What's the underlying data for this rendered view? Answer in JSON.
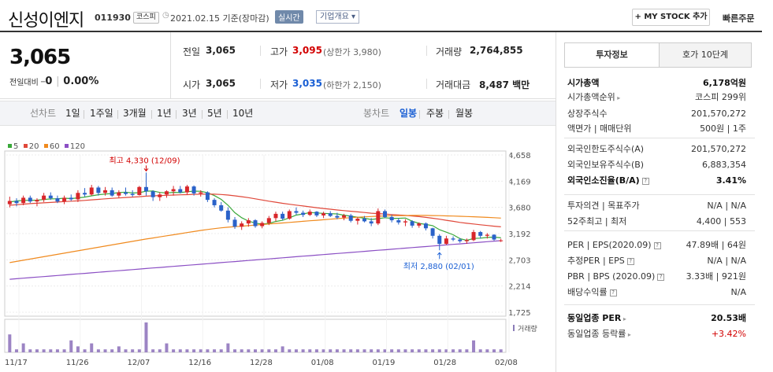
{
  "header": {
    "title": "신성이엔지",
    "code": "011930",
    "market": "코스피",
    "date": "2021.02.15 기준(장마감)",
    "realtime": "실시간",
    "company": "기업개요 ▾",
    "mystock": "+ MY STOCK 추가",
    "quick_order": "빠른주문"
  },
  "price": {
    "current": "3,065",
    "change_label": "전일대비",
    "change_symbol": "━",
    "change_value": "0",
    "change_rate": "0.00%"
  },
  "quote": {
    "prev_label": "전일",
    "prev": "3,065",
    "high_label": "고가",
    "high": "3,095",
    "upper_limit": "(상한가 3,980)",
    "volume_label": "거래량",
    "volume": "2,764,855",
    "open_label": "시가",
    "open": "3,065",
    "low_label": "저가",
    "low": "3,035",
    "lower_limit": "(하한가 2,150)",
    "amount_label": "거래대금",
    "amount": "8,487 백만"
  },
  "toolbar": {
    "line_label": "선차트",
    "periods": [
      "1일",
      "1주일",
      "3개월",
      "1년",
      "3년",
      "5년",
      "10년"
    ],
    "candle_label": "봉차트",
    "candles": [
      "일봉",
      "주봉",
      "월봉"
    ],
    "selected": "일봉"
  },
  "legend": [
    {
      "label": "5",
      "color": "#3aa93a"
    },
    {
      "label": "20",
      "color": "#e0483a"
    },
    {
      "label": "60",
      "color": "#f08a1e"
    },
    {
      "label": "120",
      "color": "#8b4fc4"
    }
  ],
  "chart_data": {
    "type": "candlestick",
    "y_ticks": [
      "4,658",
      "4,169",
      "3,680",
      "3,192",
      "2,703",
      "2,214",
      "1,725"
    ],
    "x_ticks": [
      "11/17",
      "11/26",
      "12/07",
      "12/16",
      "12/28",
      "01/08",
      "01/19",
      "01/28",
      "02/08"
    ],
    "high_annotation": "최고 4,330 (12/09)",
    "low_annotation": "최저 2,880 (02/01)",
    "volume_label": "거래량",
    "ylim": [
      1725,
      4658
    ],
    "ohlc": [
      [
        3740,
        3880,
        3680,
        3800
      ],
      [
        3800,
        3850,
        3700,
        3760
      ],
      [
        3760,
        3900,
        3720,
        3860
      ],
      [
        3860,
        3900,
        3760,
        3790
      ],
      [
        3790,
        3850,
        3700,
        3820
      ],
      [
        3820,
        3950,
        3780,
        3900
      ],
      [
        3900,
        3960,
        3820,
        3850
      ],
      [
        3850,
        3900,
        3760,
        3790
      ],
      [
        3790,
        3900,
        3740,
        3860
      ],
      [
        3860,
        3920,
        3800,
        3830
      ],
      [
        3830,
        4000,
        3780,
        3950
      ],
      [
        3950,
        4040,
        3880,
        3920
      ],
      [
        3920,
        4100,
        3900,
        4050
      ],
      [
        4050,
        4080,
        3900,
        3950
      ],
      [
        3950,
        4060,
        3900,
        4000
      ],
      [
        4000,
        4050,
        3880,
        3900
      ],
      [
        3900,
        4000,
        3860,
        3960
      ],
      [
        3960,
        4050,
        3900,
        3930
      ],
      [
        3930,
        4000,
        3880,
        3910
      ],
      [
        3910,
        4080,
        3900,
        4060
      ],
      [
        4060,
        4330,
        3900,
        3980
      ],
      [
        3980,
        4000,
        3800,
        3870
      ],
      [
        3870,
        3960,
        3800,
        3920
      ],
      [
        3920,
        4000,
        3860,
        3980
      ],
      [
        3980,
        4080,
        3900,
        4020
      ],
      [
        4020,
        4080,
        3940,
        3960
      ],
      [
        3960,
        4100,
        3920,
        4070
      ],
      [
        4070,
        4090,
        3900,
        3940
      ],
      [
        3940,
        4000,
        3880,
        3960
      ],
      [
        3960,
        3980,
        3780,
        3820
      ],
      [
        3820,
        3850,
        3680,
        3720
      ],
      [
        3720,
        3780,
        3600,
        3620
      ],
      [
        3620,
        3680,
        3400,
        3450
      ],
      [
        3450,
        3500,
        3280,
        3320
      ],
      [
        3320,
        3420,
        3260,
        3380
      ],
      [
        3380,
        3480,
        3320,
        3440
      ],
      [
        3440,
        3460,
        3300,
        3330
      ],
      [
        3330,
        3420,
        3290,
        3390
      ],
      [
        3390,
        3520,
        3350,
        3480
      ],
      [
        3480,
        3600,
        3420,
        3560
      ],
      [
        3560,
        3600,
        3440,
        3470
      ],
      [
        3470,
        3640,
        3450,
        3610
      ],
      [
        3610,
        3680,
        3540,
        3580
      ],
      [
        3580,
        3620,
        3500,
        3540
      ],
      [
        3540,
        3640,
        3520,
        3600
      ],
      [
        3600,
        3610,
        3500,
        3530
      ],
      [
        3530,
        3600,
        3480,
        3570
      ],
      [
        3570,
        3610,
        3500,
        3520
      ],
      [
        3520,
        3580,
        3460,
        3490
      ],
      [
        3490,
        3560,
        3440,
        3530
      ],
      [
        3530,
        3560,
        3400,
        3430
      ],
      [
        3430,
        3500,
        3360,
        3470
      ],
      [
        3470,
        3520,
        3400,
        3420
      ],
      [
        3420,
        3480,
        3330,
        3380
      ],
      [
        3380,
        3660,
        3350,
        3610
      ],
      [
        3610,
        3640,
        3480,
        3500
      ],
      [
        3500,
        3540,
        3400,
        3440
      ],
      [
        3440,
        3480,
        3360,
        3400
      ],
      [
        3400,
        3460,
        3330,
        3420
      ],
      [
        3420,
        3440,
        3300,
        3340
      ],
      [
        3340,
        3400,
        3300,
        3380
      ],
      [
        3380,
        3400,
        3250,
        3290
      ],
      [
        3290,
        3300,
        3100,
        3150
      ],
      [
        3150,
        3180,
        2880,
        3000
      ],
      [
        3000,
        3150,
        2980,
        3100
      ],
      [
        3100,
        3140,
        3050,
        3080
      ],
      [
        3080,
        3110,
        3020,
        3050
      ],
      [
        3050,
        3100,
        3000,
        3070
      ],
      [
        3070,
        3260,
        3050,
        3220
      ],
      [
        3220,
        3240,
        3100,
        3150
      ],
      [
        3150,
        3200,
        3100,
        3170
      ],
      [
        3170,
        3180,
        3060,
        3080
      ],
      [
        3065,
        3095,
        3035,
        3065
      ]
    ],
    "ma": {
      "5": [
        3780,
        3800,
        3810,
        3812,
        3815,
        3826,
        3838,
        3841,
        3852,
        3844,
        3858,
        3872,
        3896,
        3916,
        3928,
        3939,
        3955,
        3964,
        3948,
        3954,
        3982,
        3986,
        3958,
        3950,
        3960,
        3956,
        3972,
        3984,
        3980,
        3952,
        3900,
        3830,
        3720,
        3582,
        3488,
        3424,
        3386,
        3368,
        3382,
        3418,
        3440,
        3486,
        3536,
        3556,
        3584,
        3576,
        3568,
        3562,
        3558,
        3535,
        3516,
        3496,
        3478,
        3454,
        3470,
        3488,
        3476,
        3476,
        3482,
        3422,
        3382,
        3362,
        3340,
        3264,
        3218,
        3170,
        3098,
        3066,
        3100,
        3106,
        3120,
        3126,
        3112
      ],
      "20": [
        3720,
        3730,
        3740,
        3750,
        3758,
        3765,
        3772,
        3780,
        3788,
        3795,
        3802,
        3810,
        3820,
        3830,
        3840,
        3848,
        3856,
        3864,
        3872,
        3880,
        3890,
        3896,
        3900,
        3905,
        3910,
        3914,
        3918,
        3922,
        3926,
        3928,
        3926,
        3920,
        3910,
        3896,
        3880,
        3862,
        3840,
        3818,
        3796,
        3776,
        3756,
        3738,
        3722,
        3706,
        3690,
        3674,
        3660,
        3646,
        3632,
        3620,
        3608,
        3596,
        3584,
        3572,
        3564,
        3556,
        3546,
        3538,
        3530,
        3520,
        3508,
        3494,
        3478,
        3460,
        3440,
        3420,
        3400,
        3384,
        3370,
        3356,
        3342,
        3330,
        3318
      ],
      "60": [
        2650,
        2672,
        2694,
        2716,
        2738,
        2760,
        2782,
        2804,
        2826,
        2848,
        2870,
        2892,
        2914,
        2936,
        2958,
        2980,
        3002,
        3024,
        3046,
        3068,
        3090,
        3110,
        3130,
        3150,
        3170,
        3190,
        3210,
        3230,
        3250,
        3268,
        3284,
        3298,
        3310,
        3320,
        3330,
        3340,
        3350,
        3360,
        3370,
        3380,
        3390,
        3400,
        3410,
        3420,
        3430,
        3440,
        3450,
        3460,
        3470,
        3480,
        3488,
        3496,
        3504,
        3510,
        3516,
        3520,
        3524,
        3526,
        3528,
        3530,
        3530,
        3530,
        3528,
        3526,
        3522,
        3518,
        3514,
        3510,
        3506,
        3500,
        3494,
        3488,
        3480
      ],
      "120": [
        2340,
        2350,
        2360,
        2370,
        2380,
        2390,
        2400,
        2410,
        2420,
        2430,
        2440,
        2450,
        2460,
        2470,
        2480,
        2490,
        2500,
        2510,
        2520,
        2530,
        2540,
        2550,
        2560,
        2570,
        2580,
        2590,
        2600,
        2610,
        2620,
        2630,
        2640,
        2650,
        2660,
        2670,
        2680,
        2690,
        2700,
        2710,
        2720,
        2730,
        2740,
        2750,
        2760,
        2770,
        2780,
        2790,
        2800,
        2810,
        2820,
        2830,
        2840,
        2850,
        2860,
        2870,
        2880,
        2890,
        2900,
        2910,
        2920,
        2930,
        2940,
        2950,
        2960,
        2970,
        2980,
        2990,
        3000,
        3010,
        3020,
        3030,
        3040,
        3050,
        3060
      ]
    },
    "volume": [
      0.6,
      0.1,
      0.3,
      0.1,
      0.1,
      0.1,
      0.1,
      0.1,
      0.1,
      0.4,
      0.2,
      0.1,
      0.3,
      0.1,
      0.1,
      0.1,
      0.2,
      0.1,
      0.1,
      0.1,
      1.0,
      0.1,
      0.1,
      0.3,
      0.1,
      0.1,
      0.1,
      0.1,
      0.1,
      0.1,
      0.1,
      0.1,
      0.3,
      0.1,
      0.1,
      0.1,
      0.1,
      0.1,
      0.1,
      0.1,
      0.2,
      0.1,
      0.1,
      0.1,
      0.1,
      0.1,
      0.1,
      0.1,
      0.1,
      0.1,
      0.1,
      0.1,
      0.1,
      0.1,
      0.1,
      0.1,
      0.1,
      0.1,
      0.1,
      0.1,
      0.1,
      0.1,
      0.1,
      0.1,
      0.1,
      0.1,
      0.1,
      0.1,
      0.4,
      0.1,
      0.1,
      0.1,
      0.1
    ]
  },
  "right": {
    "tab1": "투자정보",
    "tab2": "호가 10단계",
    "rows": [
      {
        "l": "시가총액",
        "v": "6,178억원",
        "bold": true
      },
      {
        "l": "시가총액순위",
        "v": "코스피 299위",
        "dot": true
      },
      {
        "l": "상장주식수",
        "v": "201,570,272"
      },
      {
        "l": "액면가 | 매매단위",
        "v": "500원 | 1주"
      },
      {
        "l": "외국인한도주식수(A)",
        "v": "201,570,272"
      },
      {
        "l": "외국인보유주식수(B)",
        "v": "6,883,354"
      },
      {
        "l": "외국인소진율(B/A)",
        "v": "3.41%",
        "bold": true,
        "q": true
      },
      {
        "l": "투자의견 | 목표주가",
        "v": "N/A | N/A"
      },
      {
        "l": "52주최고 | 최저",
        "v": "4,400 | 553"
      },
      {
        "l": "PER | EPS(2020.09)",
        "v": "47.89배 | 64원",
        "q": true
      },
      {
        "l": "추정PER | EPS",
        "v": "N/A | N/A",
        "q": true
      },
      {
        "l": "PBR | BPS (2020.09)",
        "v": "3.33배 | 921원",
        "q": true
      },
      {
        "l": "배당수익률",
        "v": "N/A",
        "q": true
      },
      {
        "l": "동일업종 PER",
        "v": "20.53배",
        "bold": true,
        "dot": true
      },
      {
        "l": "동일업종 등락률",
        "v": "+3.42%",
        "red": true,
        "dot": true
      }
    ]
  }
}
